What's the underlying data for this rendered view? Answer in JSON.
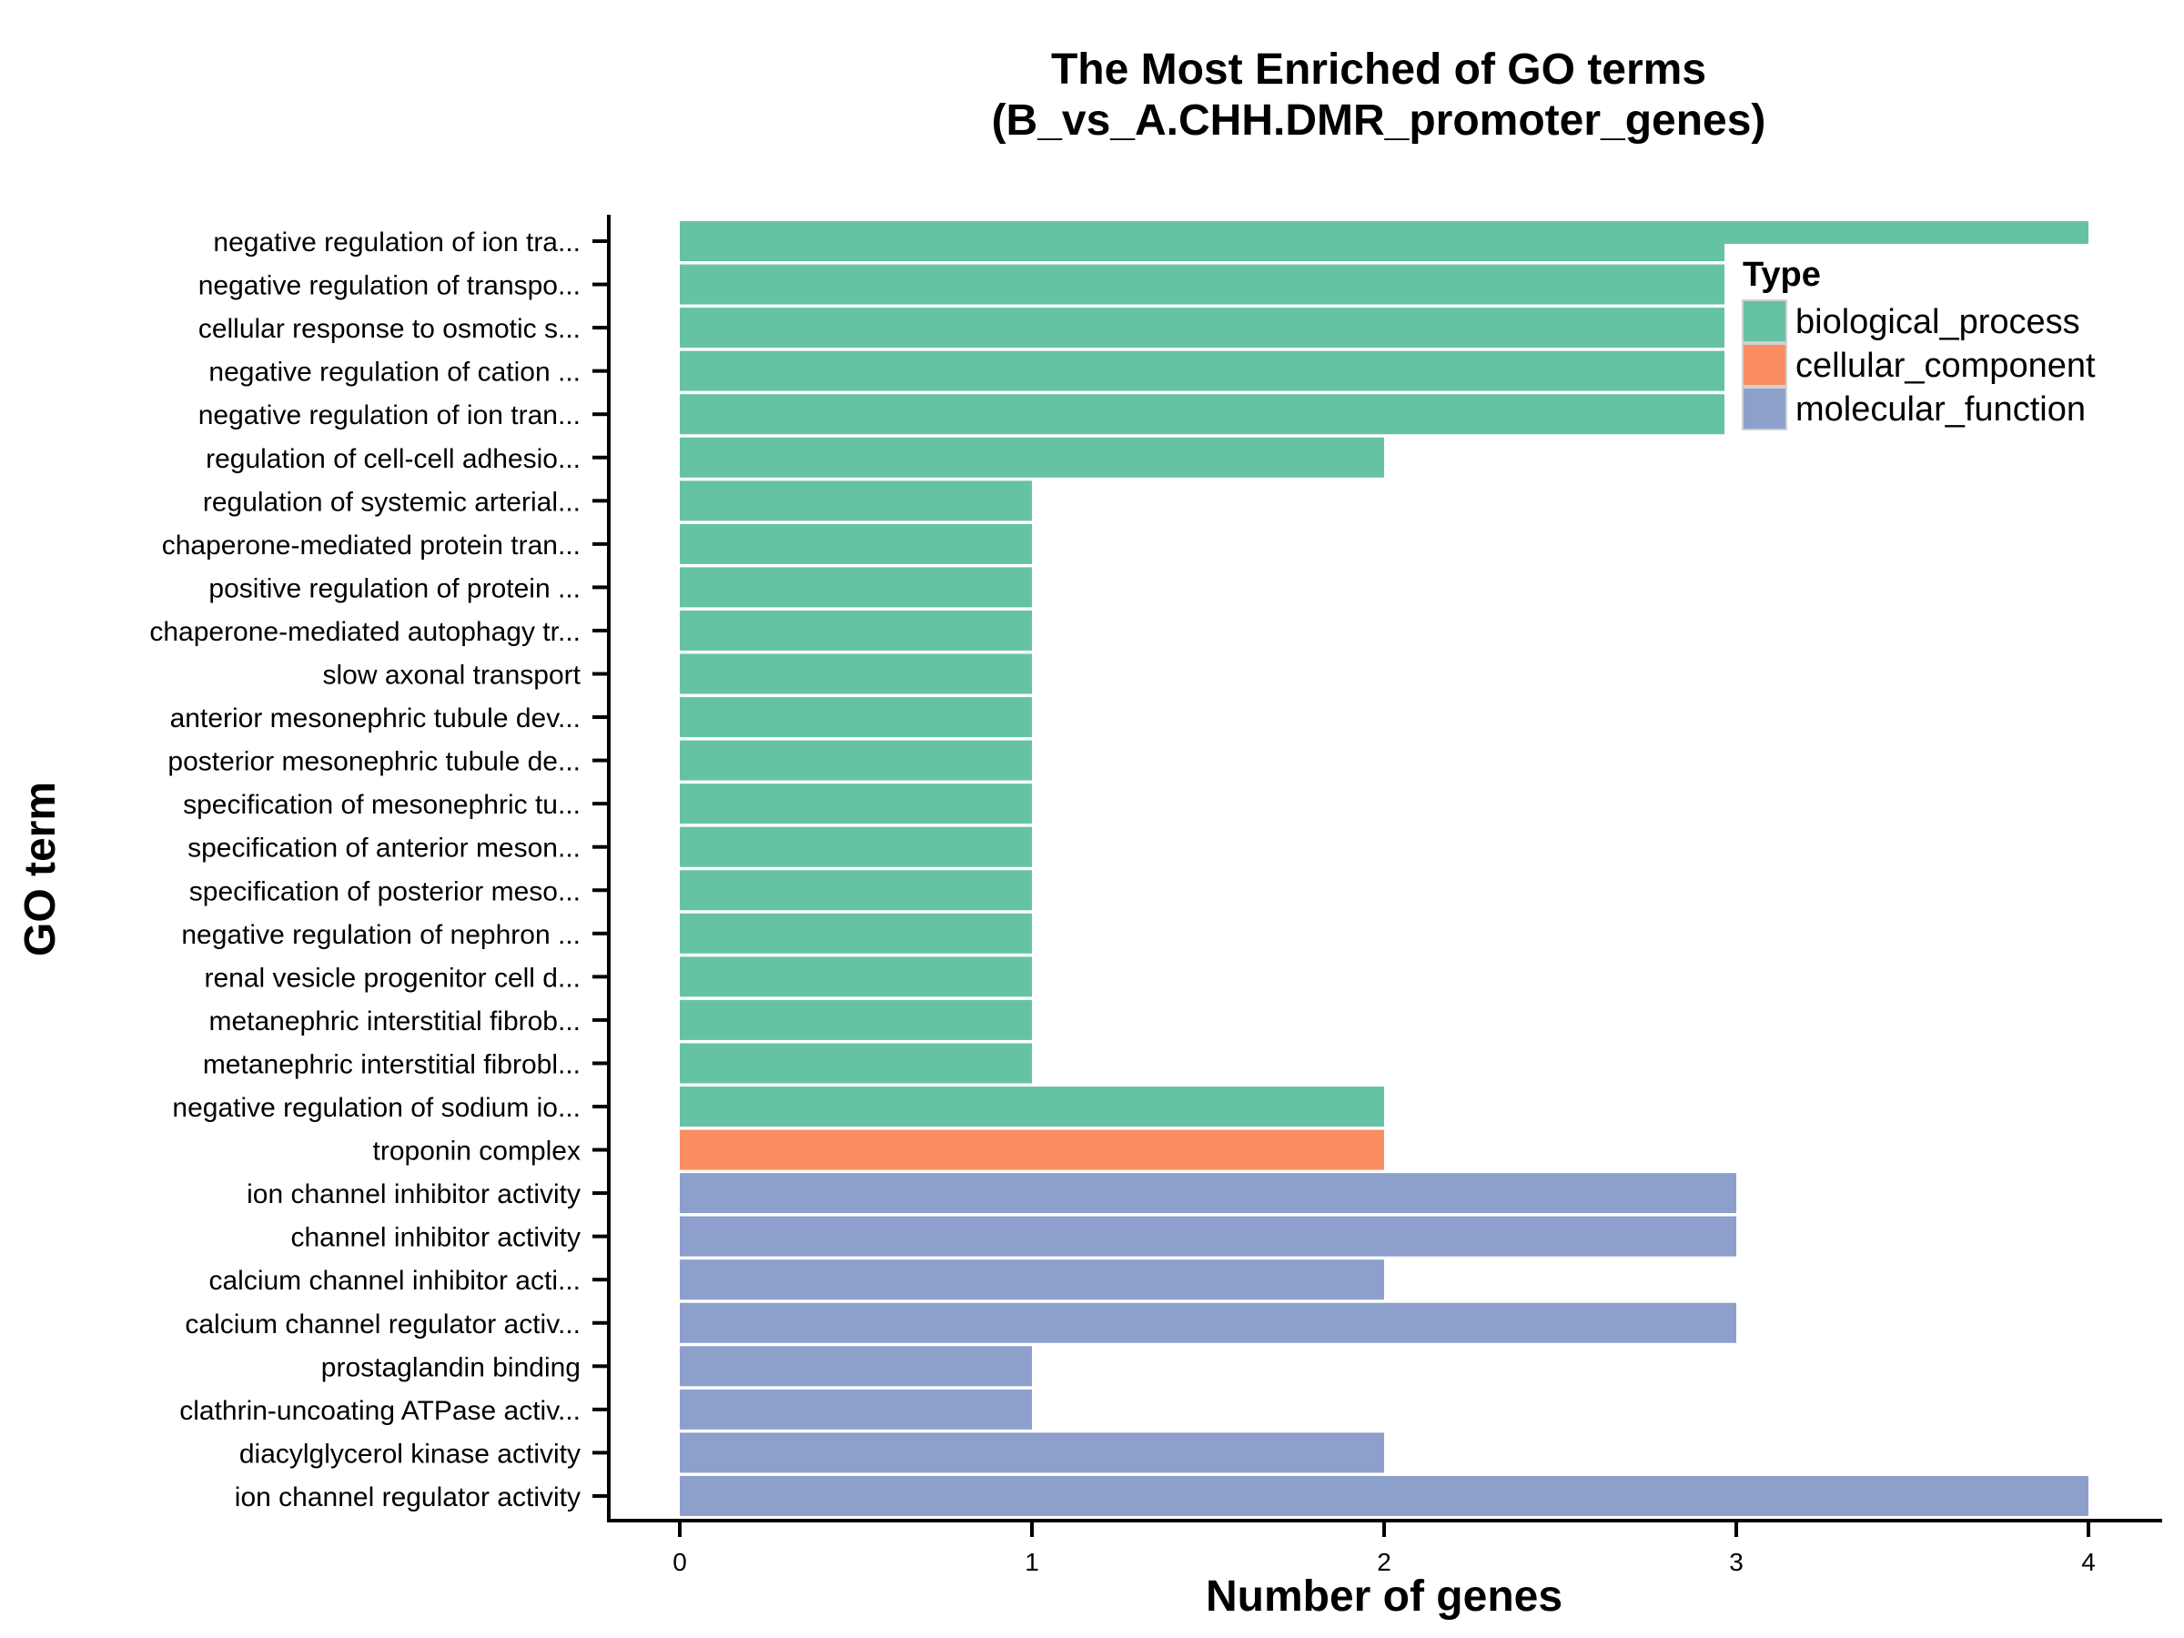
{
  "chart_data": {
    "type": "bar",
    "orientation": "horizontal",
    "title": [
      "The Most Enriched of GO terms",
      "(B_vs_A.CHH.DMR_promoter_genes)"
    ],
    "xlabel": "Number of genes",
    "ylabel": "GO term",
    "xlim": [
      0,
      4
    ],
    "xticks": [
      "0",
      "1",
      "2",
      "3",
      "4"
    ],
    "grid": false,
    "legend": {
      "title": "Type",
      "placement": "top-right",
      "entries": [
        {
          "name": "biological_process",
          "color": "#66C2A5"
        },
        {
          "name": "cellular_component",
          "color": "#FC8D62"
        },
        {
          "name": "molecular_function",
          "color": "#8DA0CB"
        }
      ]
    },
    "categories": [
      "negative regulation of ion tra...",
      "negative regulation of transpo...",
      "cellular response to osmotic s...",
      "negative regulation of cation ...",
      "negative regulation of ion tran...",
      "regulation of cell-cell adhesio...",
      "regulation of systemic arterial...",
      "chaperone-mediated protein tran...",
      "positive regulation of protein ...",
      "chaperone-mediated autophagy tr...",
      "slow axonal transport",
      "anterior mesonephric tubule dev...",
      "posterior mesonephric tubule de...",
      "specification of mesonephric tu...",
      "specification of anterior meson...",
      "specification of posterior meso...",
      "negative regulation of nephron ...",
      "renal vesicle progenitor cell d...",
      "metanephric interstitial fibrob...",
      "metanephric interstitial fibrobl...",
      "negative regulation of sodium io...",
      "troponin complex",
      "ion channel inhibitor activity",
      "channel inhibitor activity",
      "calcium channel inhibitor acti...",
      "calcium channel regulator activ...",
      "prostaglandin binding",
      "clathrin-uncoating ATPase activ...",
      "diacylglycerol kinase activity",
      "ion channel regulator activity"
    ],
    "values": [
      4,
      3,
      3,
      3,
      3,
      2,
      1,
      1,
      1,
      1,
      1,
      1,
      1,
      1,
      1,
      1,
      1,
      1,
      1,
      1,
      2,
      2,
      3,
      3,
      2,
      3,
      1,
      1,
      2,
      4
    ],
    "types": [
      "biological_process",
      "biological_process",
      "biological_process",
      "biological_process",
      "biological_process",
      "biological_process",
      "biological_process",
      "biological_process",
      "biological_process",
      "biological_process",
      "biological_process",
      "biological_process",
      "biological_process",
      "biological_process",
      "biological_process",
      "biological_process",
      "biological_process",
      "biological_process",
      "biological_process",
      "biological_process",
      "biological_process",
      "cellular_component",
      "molecular_function",
      "molecular_function",
      "molecular_function",
      "molecular_function",
      "molecular_function",
      "molecular_function",
      "molecular_function",
      "molecular_function"
    ]
  }
}
